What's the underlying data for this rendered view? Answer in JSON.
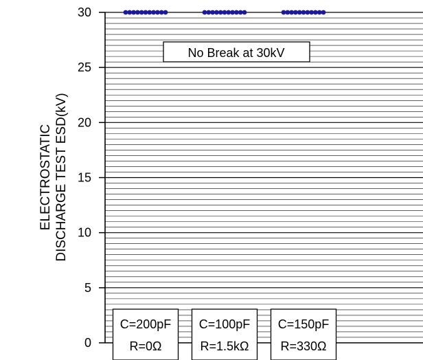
{
  "chart_data": {
    "type": "scatter",
    "ylabel_lines": [
      "ELECTROSTATIC",
      "DISCHARGE TEST ESD(kV)"
    ],
    "ylim": [
      0,
      30
    ],
    "ytick_step": 5,
    "minor_step": 0.5,
    "grid": true,
    "yticks": [
      "0",
      "5",
      "10",
      "15",
      "20",
      "25",
      "30"
    ],
    "annotation": "No Break at 30kV",
    "series": [
      {
        "y": 30,
        "line1": "C=200pF",
        "line2": "R=0Ω"
      },
      {
        "y": 30,
        "line1": "C=100pF",
        "line2": "R=1.5kΩ"
      },
      {
        "y": 30,
        "line1": "C=150pF",
        "line2": "R=330Ω"
      }
    ],
    "colors": {
      "marker": "#1a1a9a",
      "axis": "#000000",
      "grid": "#000000"
    }
  }
}
